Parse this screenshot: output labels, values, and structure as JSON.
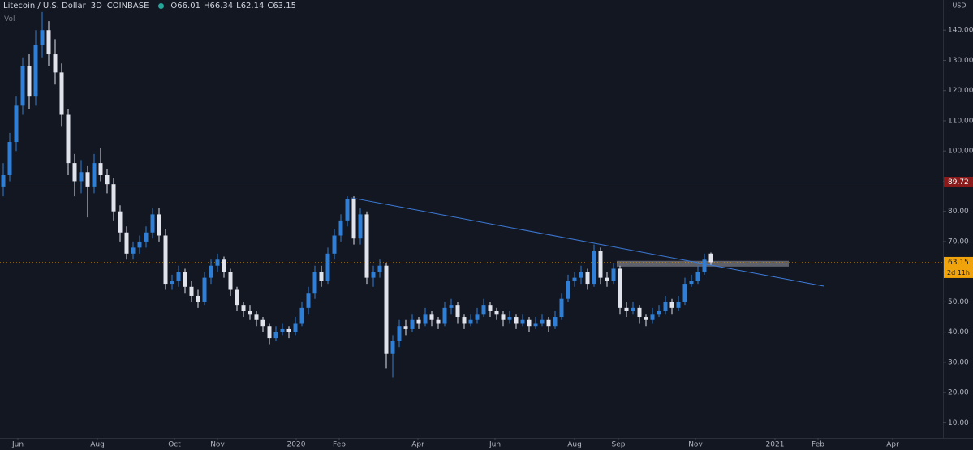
{
  "chart_data": {
    "type": "candlestick",
    "header": {
      "symbol": "Litecoin / U.S. Dollar",
      "interval": "3D",
      "exchange": "COINBASE",
      "ohlc_prefixes": [
        "O",
        "H",
        "L",
        "C"
      ],
      "volume_label": "Vol"
    },
    "currency": "USD",
    "countdown": "2d 11h",
    "up_color": "#2f7fd6",
    "down_color": "#e0e3eb",
    "open": [
      88,
      92,
      103,
      115,
      128,
      118,
      135,
      140,
      132,
      126,
      112,
      96,
      90,
      93,
      88,
      96,
      92,
      89,
      80,
      73,
      66,
      68,
      70,
      73,
      79,
      72,
      56,
      57,
      60,
      55,
      52,
      50,
      58,
      62,
      64,
      60,
      54,
      49,
      47,
      46,
      44,
      42,
      38,
      40,
      41,
      40,
      43,
      48,
      53,
      60,
      57,
      66,
      72,
      77,
      84,
      71,
      79,
      58,
      60,
      62,
      33,
      37,
      42,
      41,
      44,
      43,
      46,
      44,
      43,
      48,
      49,
      45,
      43,
      44,
      46,
      49,
      47,
      46,
      44,
      45,
      43,
      44,
      42,
      43,
      44,
      42,
      45,
      51,
      57,
      58,
      60,
      56,
      67,
      58,
      57,
      61,
      48,
      47,
      48,
      45,
      44,
      46,
      47,
      50,
      48,
      50,
      56,
      57,
      60,
      66.01
    ],
    "high": [
      96,
      106,
      118,
      131,
      132,
      140,
      146,
      143,
      137,
      129,
      114,
      99,
      97,
      95,
      99,
      101,
      94,
      91,
      82,
      75,
      70,
      72,
      75,
      81,
      81,
      74,
      59,
      62,
      61,
      57,
      54,
      60,
      64,
      66,
      65,
      61,
      55,
      50,
      49,
      47,
      45,
      43,
      42,
      43,
      42,
      45,
      50,
      55,
      62,
      62,
      68,
      74,
      79,
      85,
      85,
      81,
      80,
      62,
      64,
      63,
      39,
      44,
      44,
      46,
      45,
      48,
      47,
      45,
      50,
      51,
      50,
      46,
      46,
      48,
      51,
      50,
      48,
      47,
      47,
      46,
      46,
      45,
      45,
      46,
      45,
      47,
      53,
      59,
      60,
      62,
      61,
      69,
      68,
      60,
      63,
      62,
      50,
      50,
      49,
      46,
      48,
      49,
      52,
      51,
      52,
      58,
      59,
      62,
      66,
      66.34
    ],
    "low": [
      85,
      90,
      100,
      112,
      114,
      115,
      131,
      128,
      122,
      108,
      92,
      85,
      86,
      78,
      86,
      90,
      86,
      77,
      70,
      64,
      64,
      66,
      68,
      71,
      70,
      54,
      54,
      55,
      53,
      50,
      48,
      49,
      56,
      60,
      58,
      52,
      47,
      45,
      44,
      42,
      40,
      36,
      37,
      39,
      38,
      39,
      42,
      46,
      51,
      55,
      56,
      64,
      70,
      75,
      69,
      69,
      56,
      55,
      58,
      28,
      25,
      35,
      39,
      40,
      41,
      42,
      42,
      41,
      42,
      46,
      43,
      41,
      42,
      43,
      45,
      45,
      44,
      42,
      43,
      41,
      42,
      40,
      41,
      42,
      40,
      41,
      44,
      50,
      55,
      56,
      54,
      55,
      56,
      55,
      56,
      46,
      45,
      46,
      43,
      42,
      43,
      45,
      46,
      46,
      47,
      49,
      55,
      56,
      59,
      62.14
    ],
    "close": [
      92,
      103,
      115,
      128,
      118,
      135,
      140,
      132,
      126,
      112,
      96,
      90,
      93,
      88,
      96,
      92,
      89,
      80,
      73,
      66,
      68,
      70,
      73,
      79,
      72,
      56,
      57,
      60,
      55,
      52,
      50,
      58,
      62,
      64,
      60,
      54,
      49,
      47,
      46,
      44,
      42,
      38,
      40,
      41,
      40,
      43,
      48,
      53,
      60,
      57,
      66,
      72,
      77,
      84,
      71,
      79,
      58,
      60,
      62,
      33,
      37,
      42,
      41,
      44,
      43,
      46,
      44,
      43,
      48,
      49,
      45,
      43,
      44,
      46,
      49,
      47,
      46,
      44,
      45,
      43,
      44,
      42,
      43,
      44,
      42,
      45,
      51,
      57,
      58,
      60,
      56,
      67,
      58,
      57,
      61,
      48,
      47,
      48,
      45,
      44,
      46,
      47,
      50,
      48,
      50,
      56,
      57,
      60,
      64,
      63.15
    ],
    "xlim": [
      -0.5,
      144.5
    ],
    "xticks": [
      {
        "value": 2.25,
        "label": "Jun"
      },
      {
        "value": 14.5,
        "label": "Aug"
      },
      {
        "value": 26.375,
        "label": "Oct"
      },
      {
        "value": 33,
        "label": "Nov"
      },
      {
        "value": 45.125,
        "label": "2020"
      },
      {
        "value": 51.75,
        "label": "Feb"
      },
      {
        "value": 63.875,
        "label": "Apr"
      },
      {
        "value": 75.75,
        "label": "Jun"
      },
      {
        "value": 88,
        "label": "Aug"
      },
      {
        "value": 94.75,
        "label": "Sep"
      },
      {
        "value": 106.625,
        "label": "Nov"
      },
      {
        "value": 118.875,
        "label": "2021"
      },
      {
        "value": 125.5,
        "label": "Feb"
      },
      {
        "value": 137,
        "label": "Apr"
      }
    ],
    "ylim": [
      5,
      150
    ],
    "yticks": [
      {
        "value": 10,
        "label": "10.00"
      },
      {
        "value": 20,
        "label": "20.00"
      },
      {
        "value": 30,
        "label": "30.00"
      },
      {
        "value": 40,
        "label": "40.00"
      },
      {
        "value": 50,
        "label": "50.00"
      },
      {
        "value": 60,
        "label": "60.00"
      },
      {
        "value": 70,
        "label": "70.00"
      },
      {
        "value": 80,
        "label": "80.00"
      },
      {
        "value": 90,
        "label": "90.00"
      },
      {
        "value": 100,
        "label": "100.00"
      },
      {
        "value": 110,
        "label": "110.00"
      },
      {
        "value": 120,
        "label": "120.00"
      },
      {
        "value": 130,
        "label": "130.00"
      },
      {
        "value": 140,
        "label": "140.00"
      }
    ],
    "horizontal_line": {
      "value": 89.72,
      "color": "#8b1a1a"
    },
    "trendline": {
      "x": [
        53.6,
        126.4
      ],
      "y": [
        84.5,
        55.2
      ],
      "color": "#3d7bd9"
    },
    "zone": {
      "x": [
        94.5,
        121
      ],
      "y": [
        61.7,
        63.6
      ],
      "color": "#787b86"
    },
    "last_price_color": "#f0a30a"
  }
}
